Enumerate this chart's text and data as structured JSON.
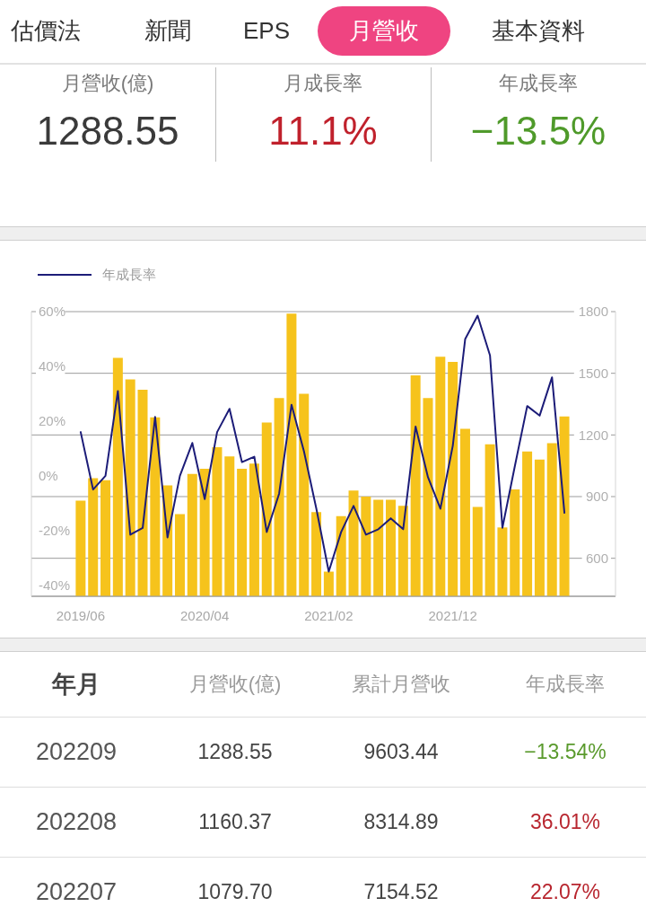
{
  "chart_data": [
    {
      "type": "other",
      "annotations": [
        "估價法",
        "新聞",
        "EPS",
        "月營收",
        "基本資料"
      ]
    },
    {
      "type": "other",
      "categories": [
        "月營收(億)",
        "月成長率",
        "年成長率"
      ],
      "value_labels": [
        "1288.55",
        "11.1%",
        "−13.5%"
      ],
      "colors": [
        "#3a3a3a",
        "#c0212c",
        "#4f9a2a"
      ]
    },
    {
      "type": "bar",
      "categories": [
        "2019/06",
        null,
        null,
        null,
        null,
        null,
        null,
        null,
        null,
        null,
        "2020/04",
        null,
        null,
        null,
        null,
        null,
        null,
        null,
        null,
        null,
        "2021/02",
        null,
        null,
        null,
        null,
        null,
        null,
        null,
        null,
        null,
        "2021/12",
        null,
        null,
        null,
        null,
        null,
        null,
        null,
        null,
        null
      ],
      "series": [
        {
          "type": "bar",
          "axis": "y2",
          "color": "#f6c31c",
          "values": [
            880,
            990,
            980,
            1575,
            1470,
            1420,
            1285,
            955,
            815,
            1010,
            1035,
            1140,
            1095,
            1035,
            1060,
            1260,
            1380,
            1790,
            1400,
            825,
            535,
            805,
            930,
            900,
            885,
            885,
            855,
            1490,
            1380,
            1580,
            1555,
            1230,
            850,
            1155,
            750,
            935,
            1120,
            1080,
            1160,
            1290
          ]
        },
        {
          "type": "line",
          "name": "年成長率",
          "axis": "y",
          "color": "#1c1c78",
          "values": [
            16,
            -5,
            0,
            31,
            -21.5,
            -19,
            21.5,
            -22.5,
            0,
            12,
            -8.5,
            16,
            24.5,
            5,
            7,
            -20.5,
            -6.5,
            26,
            9,
            -12,
            -35,
            -20.5,
            -11,
            -21.5,
            -19.5,
            -15.5,
            -19.5,
            18,
            -0.5,
            -12,
            11,
            50,
            58.5,
            44,
            -19,
            3.5,
            25.5,
            22,
            36,
            -13.5
          ]
        }
      ],
      "ylim": [
        -44,
        60
      ],
      "yticks": [
        {
          "value": -40,
          "label": "-40%"
        },
        {
          "value": -20,
          "label": "-20%"
        },
        {
          "value": 0,
          "label": "0%"
        },
        {
          "value": 20,
          "label": "20%"
        },
        {
          "value": 40,
          "label": "40%"
        },
        {
          "value": 60,
          "label": "60%"
        }
      ],
      "y2lim": [
        415,
        1800
      ],
      "y2ticks": [
        600,
        900,
        1200,
        1500,
        1800
      ],
      "grid": "y2",
      "legend": "top left",
      "marker": "none"
    },
    {
      "type": "other",
      "ylabel": "年月",
      "categories": [
        "月營收(億)",
        "累計月營收",
        "年成長率"
      ],
      "y_categories": [
        "202209",
        "202208",
        "202207"
      ],
      "cell_labels": [
        [
          "1288.55",
          "9603.44",
          "−13.54%"
        ],
        [
          "1160.37",
          "8314.89",
          "36.01%"
        ],
        [
          "1079.70",
          "7154.52",
          "22.07%"
        ]
      ],
      "colors": [
        [
          "#444444",
          "#444444",
          "#5a9a2d"
        ],
        [
          "#444444",
          "#444444",
          "#b8262f"
        ],
        [
          "#444444",
          "#444444",
          "#b8262f"
        ]
      ]
    }
  ]
}
